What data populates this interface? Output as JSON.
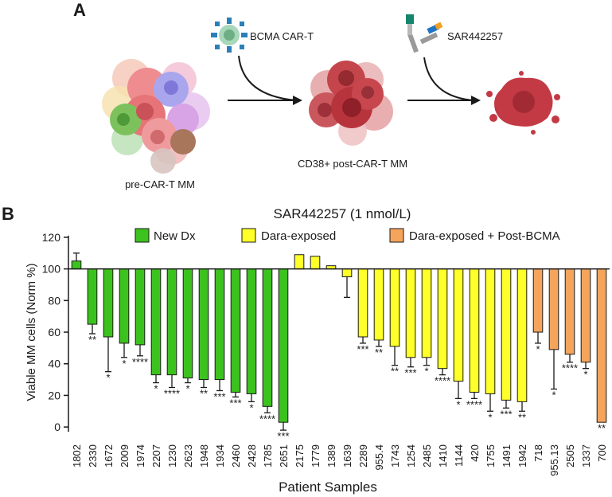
{
  "panel_a": {
    "label": "A",
    "car_t_label": "BCMA CAR-T",
    "drug_label": "SAR442257",
    "pre_label": "pre-CAR-T MM",
    "post_label": "CD38+ post-CAR-T MM"
  },
  "panel_b": {
    "label": "B"
  },
  "legend": {
    "new_dx": "New Dx",
    "dara": "Dara-exposed",
    "post_bcma": "Dara-exposed + Post-BCMA"
  },
  "colors": {
    "new_dx": "#3cc21e",
    "dara": "#ffff2a",
    "post_bcma": "#f5a45c",
    "edge": "#1a1a1a"
  },
  "chart_data": {
    "type": "bar",
    "title": "SAR442257 (1 nmol/L)",
    "xlabel": "Patient Samples",
    "ylabel": "Viable MM cells (Norm %)",
    "ylim": [
      -8,
      125
    ],
    "yticks": [
      0,
      20,
      40,
      60,
      80,
      100,
      120
    ],
    "baseline": 100,
    "categories": [
      "1802",
      "2330",
      "1672",
      "2009",
      "1974",
      "2207",
      "1230",
      "2623",
      "1948",
      "1934",
      "2460",
      "2428",
      "1785",
      "2651",
      "2175",
      "1779",
      "1389",
      "1639",
      "2289",
      "955.4",
      "1743",
      "1254",
      "2485",
      "1410",
      "1144",
      "420",
      "1755",
      "1491",
      "1942",
      "718",
      "955.13",
      "2505",
      "1337",
      "700"
    ],
    "groups": [
      "new_dx",
      "new_dx",
      "new_dx",
      "new_dx",
      "new_dx",
      "new_dx",
      "new_dx",
      "new_dx",
      "new_dx",
      "new_dx",
      "new_dx",
      "new_dx",
      "new_dx",
      "new_dx",
      "dara",
      "dara",
      "dara",
      "dara",
      "dara",
      "dara",
      "dara",
      "dara",
      "dara",
      "dara",
      "dara",
      "dara",
      "dara",
      "dara",
      "dara",
      "post_bcma",
      "post_bcma",
      "post_bcma",
      "post_bcma",
      "post_bcma"
    ],
    "values": [
      105,
      65,
      57,
      53,
      52,
      33,
      33,
      31,
      30,
      30,
      22,
      21,
      13,
      3,
      109,
      108,
      102,
      95,
      57,
      55,
      51,
      44,
      44,
      37,
      29,
      22,
      21,
      17,
      16,
      60,
      49,
      46,
      41,
      3
    ],
    "errors": [
      5,
      6,
      22,
      9,
      7,
      5,
      8,
      3,
      5,
      7,
      3,
      5,
      4,
      5,
      0,
      0,
      0,
      13,
      4,
      4,
      12,
      6,
      5,
      4,
      11,
      4,
      11,
      5,
      6,
      7,
      25,
      5,
      4,
      0
    ],
    "significance": [
      "",
      "**",
      "*",
      "*",
      "****",
      "*",
      "****",
      "*",
      "**",
      "***",
      "***",
      "*",
      "****",
      "***",
      "",
      "",
      "",
      "",
      "***",
      "**",
      "**",
      "***",
      "*",
      "****",
      "*",
      "****",
      "*",
      "***",
      "**",
      "*",
      "*",
      "****",
      "*",
      "**"
    ]
  }
}
